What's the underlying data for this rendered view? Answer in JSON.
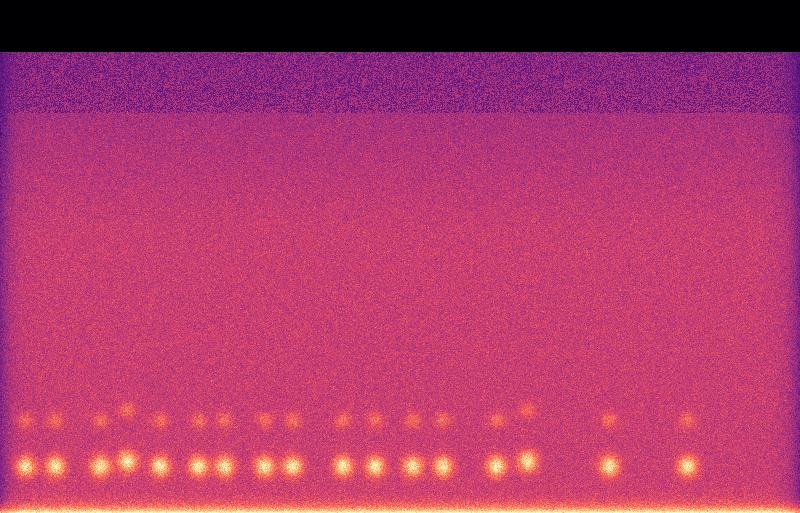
{
  "chart_data": {
    "type": "spectrogram",
    "color": "magma",
    "tick_labels": false,
    "xlim": [
      0,
      1
    ],
    "ylim": [
      0,
      1
    ],
    "x": [
      0.031,
      0.069,
      0.125,
      0.159,
      0.2,
      0.248,
      0.281,
      0.331,
      0.366,
      0.429,
      0.469,
      0.516,
      0.554,
      0.621,
      0.66,
      0.762,
      0.86
    ],
    "values": [
      0.09,
      0.09,
      0.09,
      0.1,
      0.09,
      0.09,
      0.09,
      0.09,
      0.09,
      0.09,
      0.09,
      0.09,
      0.09,
      0.09,
      0.1,
      0.09,
      0.09
    ]
  }
}
